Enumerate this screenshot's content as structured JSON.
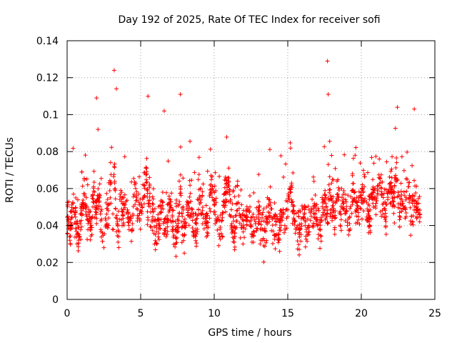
{
  "chart_data": {
    "type": "scatter",
    "title": "Day 192 of 2025, Rate Of TEC Index for receiver sofi",
    "xlabel": "GPS time / hours",
    "ylabel": "ROTI / TECUs",
    "xlim": [
      0,
      25
    ],
    "ylim": [
      0,
      0.14
    ],
    "xticks": [
      0,
      5,
      10,
      15,
      20,
      25
    ],
    "xtick_labels": [
      "0",
      "5",
      "10",
      "15",
      "20",
      "25"
    ],
    "yticks": [
      0,
      0.02,
      0.04,
      0.06,
      0.08,
      0.1,
      0.12,
      0.14
    ],
    "ytick_labels": [
      "0",
      "0.02",
      "0.04",
      "0.06",
      "0.08",
      "0.1",
      "0.12",
      "0.14"
    ],
    "grid": true,
    "marker": "plus",
    "color": "#ff0000",
    "series": [
      {
        "name": "ROTI",
        "x": [
          0.05,
          0.2,
          0.4,
          0.6,
          0.8,
          1.0,
          1.2,
          1.4,
          1.6,
          1.8,
          2.0,
          2.1,
          2.2,
          2.4,
          2.5,
          2.6,
          2.8,
          3.0,
          3.1,
          3.2,
          3.3,
          3.4,
          3.5,
          3.6,
          3.8,
          4.0,
          4.2,
          4.4,
          4.6,
          4.8,
          5.0,
          5.2,
          5.4,
          5.5,
          5.6,
          5.7,
          5.8,
          6.0,
          6.2,
          6.4,
          6.5,
          6.6,
          6.8,
          7.0,
          7.2,
          7.4,
          7.6,
          7.7,
          7.8,
          8.0,
          8.2,
          8.4,
          8.6,
          8.8,
          9.0,
          9.2,
          9.4,
          9.6,
          9.8,
          10.0,
          10.2,
          10.4,
          10.6,
          10.8,
          11.0,
          11.2,
          11.4,
          11.6,
          11.8,
          12.0,
          12.2,
          12.4,
          12.6,
          12.8,
          13.0,
          13.2,
          13.4,
          13.6,
          13.8,
          14.0,
          14.2,
          14.4,
          14.6,
          14.8,
          15.0,
          15.2,
          15.4,
          15.6,
          15.8,
          16.0,
          16.2,
          16.4,
          16.6,
          16.8,
          17.0,
          17.2,
          17.4,
          17.6,
          17.7,
          17.8,
          18.0,
          18.2,
          18.4,
          18.6,
          18.8,
          19.0,
          19.2,
          19.4,
          19.6,
          19.8,
          20.0,
          20.2,
          20.4,
          20.6,
          20.8,
          21.0,
          21.2,
          21.4,
          21.6,
          21.8,
          22.0,
          22.2,
          22.4,
          22.5,
          22.6,
          22.8,
          23.0,
          23.2,
          23.4,
          23.6,
          23.8,
          23.9,
          2.0,
          3.2,
          3.35,
          5.5,
          6.6,
          7.7,
          17.7,
          17.75,
          22.45,
          23.6
        ],
        "y": [
          0.045,
          0.038,
          0.052,
          0.041,
          0.035,
          0.048,
          0.056,
          0.043,
          0.039,
          0.061,
          0.047,
          0.092,
          0.055,
          0.036,
          0.028,
          0.044,
          0.051,
          0.063,
          0.038,
          0.072,
          0.049,
          0.041,
          0.034,
          0.057,
          0.046,
          0.053,
          0.04,
          0.037,
          0.062,
          0.044,
          0.048,
          0.055,
          0.071,
          0.043,
          0.066,
          0.039,
          0.052,
          0.035,
          0.041,
          0.047,
          0.058,
          0.036,
          0.044,
          0.05,
          0.038,
          0.033,
          0.045,
          0.061,
          0.042,
          0.039,
          0.047,
          0.053,
          0.036,
          0.041,
          0.055,
          0.048,
          0.044,
          0.039,
          0.062,
          0.051,
          0.043,
          0.038,
          0.047,
          0.058,
          0.064,
          0.041,
          0.036,
          0.052,
          0.045,
          0.039,
          0.043,
          0.048,
          0.035,
          0.041,
          0.046,
          0.038,
          0.032,
          0.044,
          0.051,
          0.037,
          0.042,
          0.035,
          0.047,
          0.04,
          0.053,
          0.061,
          0.044,
          0.038,
          0.036,
          0.049,
          0.042,
          0.039,
          0.045,
          0.051,
          0.043,
          0.038,
          0.047,
          0.055,
          0.041,
          0.062,
          0.049,
          0.044,
          0.057,
          0.046,
          0.052,
          0.048,
          0.041,
          0.059,
          0.053,
          0.047,
          0.055,
          0.061,
          0.049,
          0.044,
          0.058,
          0.052,
          0.066,
          0.057,
          0.049,
          0.054,
          0.063,
          0.051,
          0.074,
          0.058,
          0.047,
          0.053,
          0.049,
          0.061,
          0.045,
          0.056,
          0.048,
          0.052,
          0.109,
          0.124,
          0.114,
          0.11,
          0.102,
          0.111,
          0.129,
          0.111,
          0.104,
          0.103
        ]
      }
    ]
  }
}
